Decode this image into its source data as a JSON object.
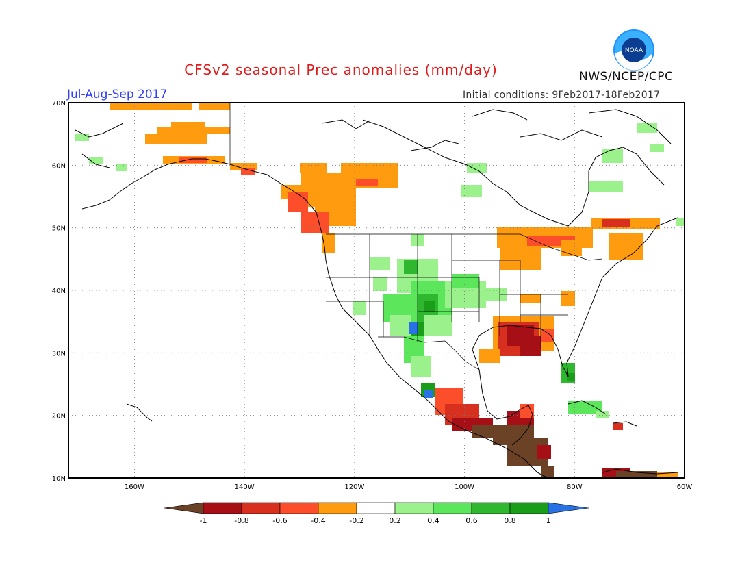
{
  "header": {
    "title": "CFSv2 seasonal Prec anomalies (mm/day)",
    "period": "Jul-Aug-Sep 2017",
    "initial_conditions": "Initial conditions: 9Feb2017-18Feb2017",
    "agency": "NWS/NCEP/CPC",
    "logo_text": "NOAA"
  },
  "map": {
    "lon_range": [
      -172,
      -60
    ],
    "lat_range": [
      10,
      70
    ],
    "x_ticks": [
      "160W",
      "140W",
      "120W",
      "100W",
      "80W",
      "60W"
    ],
    "y_ticks": [
      "70N",
      "60N",
      "50N",
      "40N",
      "30N",
      "20N",
      "10N"
    ],
    "grid": "dotted"
  },
  "colorbar": {
    "labels": [
      "-1",
      "-0.8",
      "-0.6",
      "-0.4",
      "-0.2",
      "0.2",
      "0.4",
      "0.6",
      "0.8",
      "1"
    ],
    "colors": [
      "#6b4226",
      "#a50f15",
      "#d7301f",
      "#fc4e2a",
      "#fe9b0f",
      "#ffffff",
      "#9bf28c",
      "#5ce65c",
      "#2fb82f",
      "#1a9e1a",
      "#2872e6"
    ]
  }
}
